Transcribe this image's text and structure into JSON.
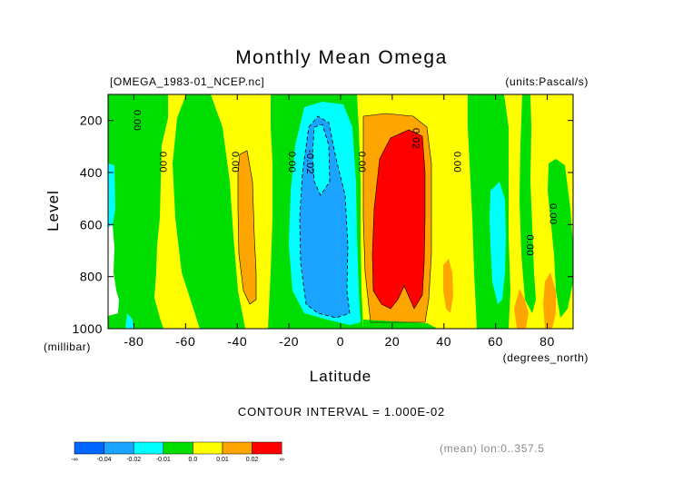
{
  "header": {
    "title": "Monthly Mean Omega",
    "file_name": "[OMEGA_1983-01_NCEP.nc]",
    "units": "(units:Pascal/s)"
  },
  "footer": {
    "contour_interval": "CONTOUR INTERVAL = 1.000E-02",
    "averaging_note": "(mean) lon:0..357.5"
  },
  "colors": {
    "lt_-0.04": "#0066ff",
    "-0.04_-0.02": "#1aa3ff",
    "-0.02_-0.01": "#00ffff",
    "-0.01_0.0": "#00dd00",
    "0.0_0.01": "#ffff00",
    "0.01_0.02": "#ffa500",
    "gt_0.02": "#ff0000"
  },
  "chart_data": {
    "type": "contour",
    "title": "Monthly Mean Omega",
    "xlabel": "Latitude",
    "xlabel_unit": "(degrees_north)",
    "ylabel": "Level",
    "ylabel_unit": "(millibar)",
    "xlim": [
      -90,
      90
    ],
    "ylim": [
      1000,
      100
    ],
    "x_ticks": [
      -80,
      -60,
      -40,
      -20,
      0,
      20,
      40,
      60,
      80
    ],
    "y_ticks": [
      200,
      400,
      600,
      800,
      1000
    ],
    "contour_interval": 0.01,
    "contour_labels": [
      {
        "text": "0.00",
        "lat": -80,
        "lev": 200
      },
      {
        "text": "0.00",
        "lat": -70,
        "lev": 360
      },
      {
        "text": "0.00",
        "lat": -42,
        "lev": 360
      },
      {
        "text": "0.00",
        "lat": -20,
        "lev": 360
      },
      {
        "text": "-0.02",
        "lat": -13,
        "lev": 360
      },
      {
        "text": "0.00",
        "lat": 7,
        "lev": 360
      },
      {
        "text": "0.02",
        "lat": 28,
        "lev": 270
      },
      {
        "text": "0.00",
        "lat": 44,
        "lev": 360
      },
      {
        "text": "0.00",
        "lat": 72,
        "lev": 680
      },
      {
        "text": "0.00",
        "lat": 81,
        "lev": 560
      }
    ],
    "colorbar": {
      "bounds": [
        -0.04,
        -0.02,
        -0.01,
        0.0,
        0.01,
        0.02
      ],
      "labels": [
        "-∞",
        "-0.04",
        "-0.02",
        "-0.01",
        "0.0",
        "0.01",
        "0.02",
        "∞"
      ]
    }
  }
}
